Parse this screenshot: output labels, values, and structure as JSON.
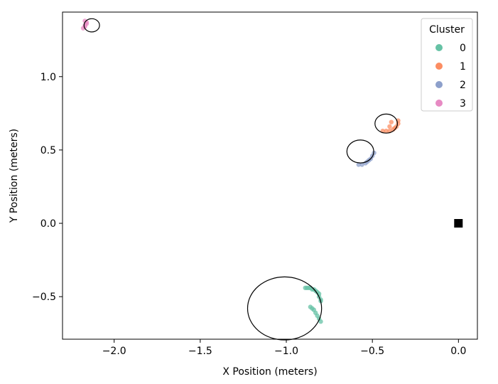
{
  "chart_data": {
    "type": "scatter",
    "title": "",
    "xlabel": "X Position (meters)",
    "ylabel": "Y Position (meters)",
    "xlim": [
      -2.3,
      0.11
    ],
    "ylim": [
      -0.79,
      1.44
    ],
    "xticks": [
      -2.0,
      -1.5,
      -1.0,
      -0.5,
      0.0
    ],
    "xtick_labels": [
      "−2.0",
      "−1.5",
      "−1.0",
      "−0.5",
      "0.0"
    ],
    "yticks": [
      -0.5,
      0.0,
      0.5,
      1.0
    ],
    "ytick_labels": [
      "−0.5",
      "0.0",
      "0.5",
      "1.0"
    ],
    "grid": false,
    "legend": {
      "title": "Cluster",
      "placement": "top-right",
      "entries": [
        {
          "label": "0",
          "color": "#66c2a5"
        },
        {
          "label": "1",
          "color": "#fc8d62"
        },
        {
          "label": "2",
          "color": "#8da0cb"
        },
        {
          "label": "3",
          "color": "#e78ac3"
        }
      ]
    },
    "series": [
      {
        "name": "0",
        "color": "#66c2a5",
        "points": [
          [
            -0.89,
            -0.44
          ],
          [
            -0.88,
            -0.44
          ],
          [
            -0.87,
            -0.44
          ],
          [
            -0.86,
            -0.44
          ],
          [
            -0.85,
            -0.45
          ],
          [
            -0.84,
            -0.45
          ],
          [
            -0.83,
            -0.46
          ],
          [
            -0.82,
            -0.47
          ],
          [
            -0.81,
            -0.48
          ],
          [
            -0.81,
            -0.5
          ],
          [
            -0.8,
            -0.52
          ],
          [
            -0.8,
            -0.53
          ],
          [
            -0.86,
            -0.57
          ],
          [
            -0.85,
            -0.58
          ],
          [
            -0.84,
            -0.59
          ],
          [
            -0.83,
            -0.61
          ],
          [
            -0.82,
            -0.63
          ],
          [
            -0.81,
            -0.65
          ],
          [
            -0.8,
            -0.67
          ]
        ]
      },
      {
        "name": "1",
        "color": "#fc8d62",
        "points": [
          [
            -0.44,
            0.63
          ],
          [
            -0.42,
            0.63
          ],
          [
            -0.4,
            0.63
          ],
          [
            -0.38,
            0.64
          ],
          [
            -0.37,
            0.65
          ],
          [
            -0.36,
            0.66
          ],
          [
            -0.35,
            0.68
          ],
          [
            -0.35,
            0.7
          ],
          [
            -0.39,
            0.69
          ],
          [
            -0.4,
            0.66
          ]
        ]
      },
      {
        "name": "2",
        "color": "#8da0cb",
        "points": [
          [
            -0.58,
            0.4
          ],
          [
            -0.56,
            0.4
          ],
          [
            -0.54,
            0.41
          ],
          [
            -0.53,
            0.42
          ],
          [
            -0.52,
            0.43
          ],
          [
            -0.51,
            0.44
          ],
          [
            -0.5,
            0.46
          ],
          [
            -0.49,
            0.48
          ]
        ]
      },
      {
        "name": "3",
        "color": "#e78ac3",
        "points": [
          [
            -2.18,
            1.33
          ],
          [
            -2.17,
            1.34
          ],
          [
            -2.17,
            1.35
          ],
          [
            -2.16,
            1.36
          ],
          [
            -2.16,
            1.37
          ],
          [
            -2.17,
            1.38
          ]
        ]
      }
    ],
    "circles": [
      {
        "cx": -2.13,
        "cy": 1.35,
        "r": 0.045
      },
      {
        "cx": -0.42,
        "cy": 0.68,
        "r": 0.065
      },
      {
        "cx": -0.57,
        "cy": 0.49,
        "r": 0.078
      },
      {
        "cx": -1.01,
        "cy": -0.58,
        "r": 0.215
      }
    ],
    "marker": {
      "x": 0.0,
      "y": 0.0,
      "shape": "square",
      "color": "#000000"
    }
  }
}
